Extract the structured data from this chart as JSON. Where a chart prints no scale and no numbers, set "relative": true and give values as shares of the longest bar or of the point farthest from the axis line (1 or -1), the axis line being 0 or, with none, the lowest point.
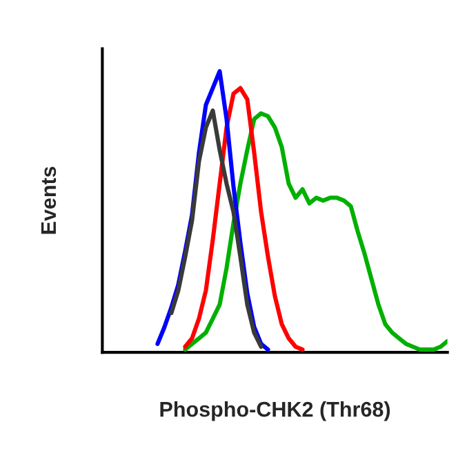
{
  "chart_data": {
    "type": "line",
    "relative": true,
    "xlabel": "Phospho-CHK2 (Thr68)",
    "ylabel": "Events",
    "grid": false,
    "legend": false,
    "marker": "none",
    "line_style": "solid",
    "categories": [
      null,
      null,
      null,
      null,
      null,
      null,
      null,
      null,
      null,
      null,
      null,
      null,
      null,
      null,
      null,
      null,
      null,
      null,
      null,
      null,
      null,
      null,
      null,
      null,
      null,
      null,
      null,
      null,
      null,
      null,
      null,
      null,
      null,
      null,
      null,
      null,
      null,
      null,
      null,
      null,
      null,
      null,
      null,
      null,
      null,
      null,
      null,
      null,
      null,
      null,
      null
    ],
    "series": [
      {
        "color": "#00b000",
        "values": [
          null,
          null,
          null,
          null,
          null,
          null,
          null,
          null,
          null,
          null,
          null,
          null,
          0.01,
          0.03,
          0.05,
          0.07,
          0.12,
          0.17,
          0.3,
          0.46,
          0.6,
          0.72,
          0.83,
          0.85,
          0.84,
          0.8,
          0.73,
          0.6,
          0.55,
          0.58,
          0.53,
          0.55,
          0.54,
          0.55,
          0.55,
          0.54,
          0.52,
          0.43,
          0.35,
          0.26,
          0.17,
          0.1,
          0.07,
          0.05,
          0.03,
          0.02,
          0.01,
          0.01,
          0.01,
          0.02,
          0.04
        ]
      },
      {
        "color": "#ff0000",
        "values": [
          null,
          null,
          null,
          null,
          null,
          null,
          null,
          null,
          null,
          null,
          null,
          null,
          0.02,
          0.05,
          0.12,
          0.22,
          0.4,
          0.6,
          0.8,
          0.92,
          0.94,
          0.9,
          0.71,
          0.5,
          0.34,
          0.2,
          0.1,
          0.05,
          0.02,
          0.01,
          null,
          null,
          null,
          null,
          null,
          null,
          null,
          null,
          null,
          null,
          null,
          null,
          null,
          null,
          null,
          null,
          null,
          null,
          null,
          null,
          null
        ]
      },
      {
        "color": "#0000ff",
        "values": [
          null,
          null,
          null,
          null,
          null,
          null,
          null,
          null,
          0.03,
          0.09,
          0.16,
          0.24,
          0.36,
          0.49,
          0.71,
          0.88,
          0.94,
          1,
          0.83,
          0.59,
          0.39,
          0.21,
          0.09,
          0.03,
          0.01,
          null,
          null,
          null,
          null,
          null,
          null,
          null,
          null,
          null,
          null,
          null,
          null,
          null,
          null,
          null,
          null,
          null,
          null,
          null,
          null,
          null,
          null,
          null,
          null,
          null,
          null
        ]
      },
      {
        "color": "#3a3a3a",
        "values": [
          null,
          null,
          null,
          null,
          null,
          null,
          null,
          null,
          null,
          null,
          0.14,
          0.22,
          0.34,
          0.47,
          0.68,
          0.8,
          0.86,
          0.72,
          0.6,
          0.5,
          0.34,
          0.17,
          0.07,
          0.02,
          null,
          null,
          null,
          null,
          null,
          null,
          null,
          null,
          null,
          null,
          null,
          null,
          null,
          null,
          null,
          null,
          null,
          null,
          null,
          null,
          null,
          null,
          null,
          null,
          null,
          null,
          null
        ]
      }
    ]
  }
}
